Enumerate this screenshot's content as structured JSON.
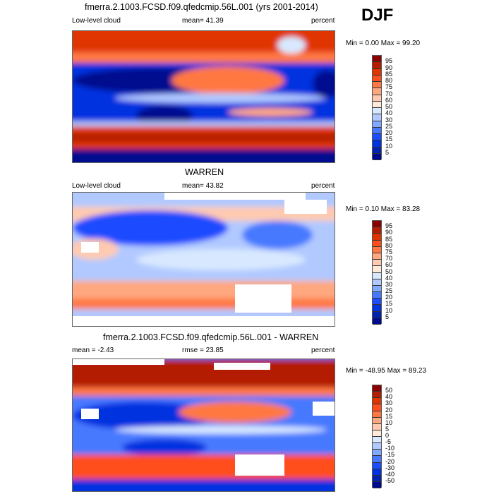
{
  "season": "DJF",
  "colors": [
    "#8b0000",
    "#b31e00",
    "#e03400",
    "#ff4e1c",
    "#ff7843",
    "#ffa77f",
    "#ffcab0",
    "#ffe9d9",
    "#d8e9ff",
    "#b1c9ff",
    "#80a9ff",
    "#4679ff",
    "#1c4cff",
    "#0033e0",
    "#0022b0",
    "#000a8f"
  ],
  "panels": [
    {
      "title": "fmerra.2.1003.FCSD.f09.qfedcmip.56L.001 (yrs 2001-2014)",
      "left": "Low-level cloud",
      "center": "mean=  41.39",
      "right": "percent",
      "minmax": "Min =   0.00 Max =  99.20",
      "levels": [
        "95",
        "90",
        "85",
        "80",
        "75",
        "70",
        "60",
        "50",
        "40",
        "30",
        "25",
        "20",
        "15",
        "10",
        "5"
      ]
    },
    {
      "title": "WARREN",
      "left": "Low-level cloud",
      "center": "mean=  43.82",
      "right": "percent",
      "minmax": "Min =   0.10 Max =  83.28",
      "levels": [
        "95",
        "90",
        "85",
        "80",
        "75",
        "70",
        "60",
        "50",
        "40",
        "30",
        "25",
        "20",
        "15",
        "10",
        "5"
      ]
    },
    {
      "title": "fmerra.2.1003.FCSD.f09.qfedcmip.56L.001 - WARREN",
      "left": "mean =  -2.43",
      "center": "rmse =  23.85",
      "right": "percent",
      "minmax": "Min = -48.95 Max =  89.23",
      "levels": [
        "50",
        "40",
        "30",
        "20",
        "15",
        "10",
        "5",
        "0",
        "-5",
        "-10",
        "-15",
        "-20",
        "-30",
        "-40",
        "-50"
      ]
    }
  ]
}
